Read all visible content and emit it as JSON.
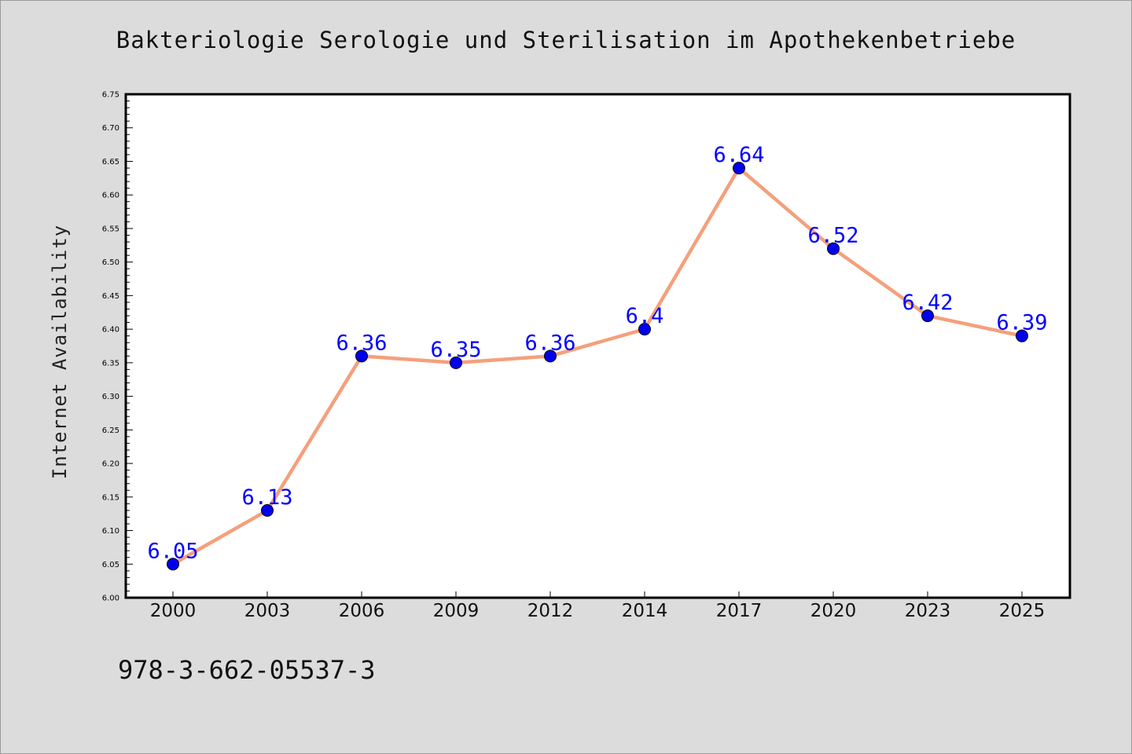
{
  "title": "Bakteriologie Serologie und Sterilisation im Apothekenbetriebe",
  "isbn": "978-3-662-05537-3",
  "colors": {
    "line": "#f4a07c",
    "marker": "#0000ee",
    "label": "#0000ff",
    "background": "#dcdcdc",
    "plot": "#ffffff"
  },
  "chart_data": {
    "type": "line",
    "title": "Bakteriologie Serologie und Sterilisation im Apothekenbetriebe",
    "xlabel": "",
    "ylabel": "Internet Availability",
    "categories": [
      "2000",
      "2003",
      "2006",
      "2009",
      "2012",
      "2014",
      "2017",
      "2020",
      "2023",
      "2025"
    ],
    "values": [
      6.05,
      6.13,
      6.36,
      6.35,
      6.36,
      6.4,
      6.64,
      6.52,
      6.42,
      6.39
    ],
    "data_labels": [
      "6.05",
      "6.13",
      "6.36",
      "6.35",
      "6.36",
      "6.4",
      "6.64",
      "6.52",
      "6.42",
      "6.39"
    ],
    "ylim": [
      6.0,
      6.75
    ],
    "yticks": [
      "6.00",
      "6.05",
      "6.10",
      "6.15",
      "6.20",
      "6.25",
      "6.30",
      "6.35",
      "6.40",
      "6.45",
      "6.50",
      "6.55",
      "6.60",
      "6.65",
      "6.70",
      "6.75"
    ],
    "grid": false,
    "legend": "none"
  }
}
